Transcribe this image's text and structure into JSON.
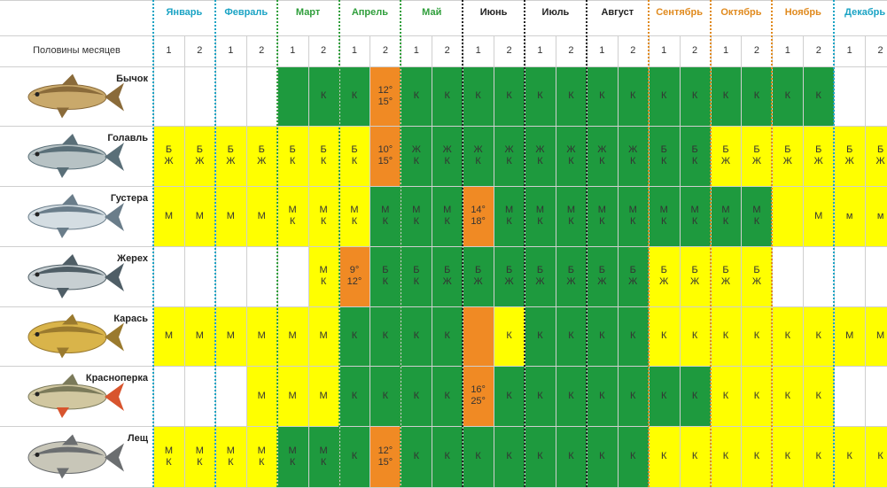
{
  "header": {
    "halves_label": "Половины месяцев",
    "half_labels": [
      "1",
      "2"
    ]
  },
  "months": [
    {
      "name": "Январь",
      "color": "#1aa3c4",
      "season": "winter"
    },
    {
      "name": "Февраль",
      "color": "#1aa3c4",
      "season": "winter"
    },
    {
      "name": "Март",
      "color": "#2f9e3b",
      "season": "spring"
    },
    {
      "name": "Апрель",
      "color": "#2f9e3b",
      "season": "spring"
    },
    {
      "name": "Май",
      "color": "#2f9e3b",
      "season": "spring"
    },
    {
      "name": "Июнь",
      "color": "#222222",
      "season": "summer"
    },
    {
      "name": "Июль",
      "color": "#222222",
      "season": "summer"
    },
    {
      "name": "Август",
      "color": "#222222",
      "season": "summer"
    },
    {
      "name": "Сентябрь",
      "color": "#e08a1e",
      "season": "autumn"
    },
    {
      "name": "Октябрь",
      "color": "#e08a1e",
      "season": "autumn"
    },
    {
      "name": "Ноябрь",
      "color": "#e08a1e",
      "season": "autumn"
    },
    {
      "name": "Декабрь",
      "color": "#1aa3c4",
      "season": "winter"
    }
  ],
  "colors": {
    "Y": "#ffff00",
    "G": "#1e9a3e",
    "O": "#f08a24",
    "W": "#ffffff"
  },
  "fish": [
    {
      "name": "Бычок",
      "icon": "goby-fish-icon",
      "cells": [
        "W",
        "W",
        "W",
        "W",
        "G",
        "G",
        "G",
        "O",
        "G",
        "G",
        "G",
        "G",
        "G",
        "G",
        "G",
        "G",
        "G",
        "G",
        "G",
        "G",
        "G",
        "G",
        "W",
        "W"
      ],
      "texts": [
        "",
        "",
        "",
        "",
        "",
        "К",
        "К",
        "12°\n15°",
        "К",
        "К",
        "К",
        "К",
        "К",
        "К",
        "К",
        "К",
        "К",
        "К",
        "К",
        "К",
        "К",
        "К",
        "",
        ""
      ]
    },
    {
      "name": "Голавль",
      "icon": "chub-fish-icon",
      "cells": [
        "Y",
        "Y",
        "Y",
        "Y",
        "Y",
        "Y",
        "Y",
        "O",
        "G",
        "G",
        "G",
        "G",
        "G",
        "G",
        "G",
        "G",
        "G",
        "G",
        "Y",
        "Y",
        "Y",
        "Y",
        "Y",
        "Y"
      ],
      "texts": [
        "Б\nЖ",
        "Б\nЖ",
        "Б\nЖ",
        "Б\nЖ",
        "Б\nК",
        "Б\nК",
        "Б\nК",
        "10°\n15°",
        "Ж\nК",
        "Ж\nК",
        "Ж\nК",
        "Ж\nК",
        "Ж\nК",
        "Ж\nК",
        "Ж\nК",
        "Ж\nК",
        "Б\nК",
        "Б\nК",
        "Б\nЖ",
        "Б\nЖ",
        "Б\nЖ",
        "Б\nЖ",
        "Б\nЖ",
        "Б\nЖ"
      ]
    },
    {
      "name": "Густера",
      "icon": "silver-bream-fish-icon",
      "cells": [
        "Y",
        "Y",
        "Y",
        "Y",
        "Y",
        "Y",
        "Y",
        "G",
        "G",
        "G",
        "O",
        "G",
        "G",
        "G",
        "G",
        "G",
        "G",
        "G",
        "G",
        "G",
        "Y",
        "Y",
        "Y",
        "Y"
      ],
      "texts": [
        "М",
        "М",
        "М",
        "М",
        "М\nК",
        "М\nК",
        "М\nК",
        "М\nК",
        "М\nК",
        "М\nК",
        "14°\n18°",
        "М\nК",
        "М\nК",
        "М\nК",
        "М\nК",
        "М\nК",
        "М\nК",
        "М\nК",
        "М\nК",
        "М\nК",
        "",
        "М",
        "м",
        "м"
      ]
    },
    {
      "name": "Жерех",
      "icon": "asp-fish-icon",
      "cells": [
        "W",
        "W",
        "W",
        "W",
        "W",
        "Y",
        "O",
        "G",
        "G",
        "G",
        "G",
        "G",
        "G",
        "G",
        "G",
        "G",
        "Y",
        "Y",
        "Y",
        "Y",
        "W",
        "W",
        "W",
        "W"
      ],
      "texts": [
        "",
        "",
        "",
        "",
        "",
        "М\nК",
        "9°\n12°",
        "Б\nК",
        "Б\nК",
        "Б\nЖ",
        "Б\nЖ",
        "Б\nЖ",
        "Б\nЖ",
        "Б\nЖ",
        "Б\nЖ",
        "Б\nЖ",
        "Б\nЖ",
        "Б\nЖ",
        "Б\nЖ",
        "Б\nЖ",
        "",
        "",
        "",
        ""
      ]
    },
    {
      "name": "Карась",
      "icon": "crucian-carp-fish-icon",
      "cells": [
        "Y",
        "Y",
        "Y",
        "Y",
        "Y",
        "Y",
        "G",
        "G",
        "G",
        "G",
        "O",
        "Y",
        "G",
        "G",
        "G",
        "G",
        "Y",
        "Y",
        "Y",
        "Y",
        "Y",
        "Y",
        "Y",
        "Y"
      ],
      "texts": [
        "М",
        "М",
        "М",
        "М",
        "М",
        "М",
        "К",
        "К",
        "К",
        "К",
        "",
        "К",
        "К",
        "К",
        "К",
        "К",
        "К",
        "К",
        "К",
        "К",
        "К",
        "К",
        "М",
        "М"
      ]
    },
    {
      "name": "Красноперка",
      "icon": "rudd-fish-icon",
      "cells": [
        "W",
        "W",
        "W",
        "Y",
        "Y",
        "Y",
        "G",
        "G",
        "G",
        "G",
        "O",
        "G",
        "G",
        "G",
        "G",
        "G",
        "G",
        "G",
        "Y",
        "Y",
        "Y",
        "Y",
        "W",
        "W"
      ],
      "texts": [
        "",
        "",
        "",
        "М",
        "М",
        "М",
        "К",
        "К",
        "К",
        "К",
        "16°\n25°",
        "К",
        "К",
        "К",
        "К",
        "К",
        "К",
        "К",
        "К",
        "К",
        "К",
        "К",
        "",
        ""
      ]
    },
    {
      "name": "Лещ",
      "icon": "bream-fish-icon",
      "cells": [
        "Y",
        "Y",
        "Y",
        "Y",
        "G",
        "G",
        "G",
        "O",
        "G",
        "G",
        "G",
        "G",
        "G",
        "G",
        "G",
        "G",
        "Y",
        "Y",
        "Y",
        "Y",
        "Y",
        "Y",
        "Y",
        "Y"
      ],
      "texts": [
        "М\nК",
        "М\nК",
        "М\nК",
        "М\nК",
        "М\nК",
        "М\nК",
        "К",
        "12°\n15°",
        "К",
        "К",
        "К",
        "К",
        "К",
        "К",
        "К",
        "К",
        "К",
        "К",
        "К",
        "К",
        "К",
        "К",
        "К",
        "К"
      ]
    }
  ]
}
